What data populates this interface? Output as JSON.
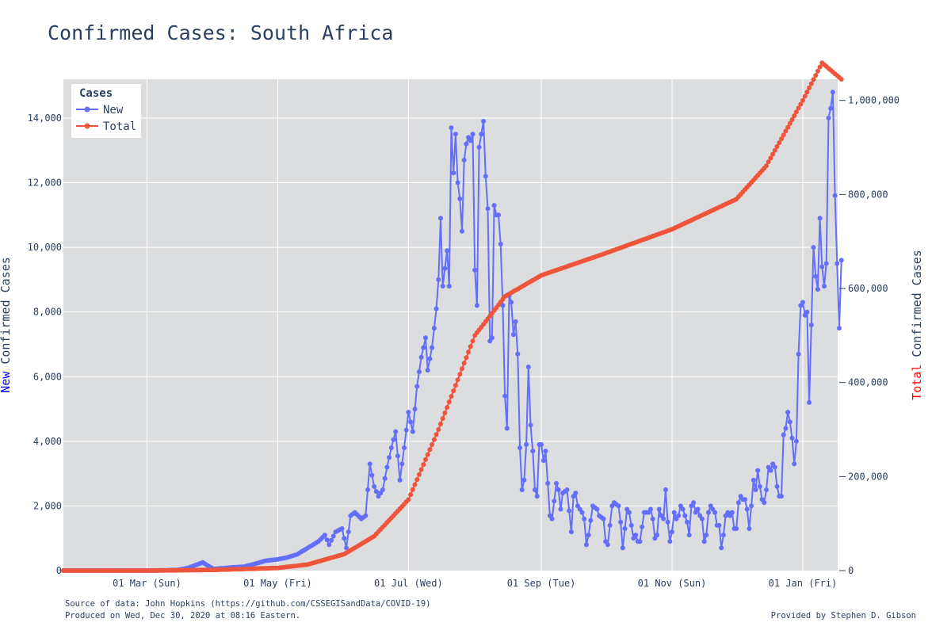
{
  "title": "Confirmed Cases: South Africa",
  "footer": {
    "source": "Source of data: John Hopkins (https://github.com/CSSEGISandData/COVID-19)",
    "produced": "Produced on Wed, Dec 30, 2020 at 08:16 Eastern.",
    "credit": "Provided by Stephen D. Gibson"
  },
  "colors": {
    "new": "#636efa",
    "total": "#ef553b",
    "plot_bg": "#dcdddf",
    "text": "#2a3f5f",
    "grid": "#ffffff"
  },
  "chart_data": {
    "type": "line",
    "title": "Confirmed Cases: South Africa",
    "legend": {
      "title": "Cases",
      "placement": "top-left"
    },
    "x_tick_labels": [
      "01 Mar (Sun)",
      "01 May (Fri)",
      "01 Jul (Wed)",
      "01 Sep (Tue)",
      "01 Nov (Sun)",
      "01 Jan (Fri)"
    ],
    "x_tick_dates": [
      "2020-03-01",
      "2020-05-01",
      "2020-07-01",
      "2020-09-01",
      "2020-11-01",
      "2021-01-01"
    ],
    "xlim": [
      "2020-01-22",
      "2021-01-01"
    ],
    "y_left": {
      "label_prefix": "New",
      "label_rest": " Confirmed Cases",
      "ylim": [
        0,
        15200
      ],
      "ticks": [
        0,
        2000,
        4000,
        6000,
        8000,
        10000,
        12000,
        14000
      ],
      "tick_labels": [
        "0",
        "2,000",
        "4,000",
        "6,000",
        "8,000",
        "10,000",
        "12,000",
        "14,000"
      ]
    },
    "y_right": {
      "label_prefix": "Total",
      "label_rest": " Confirmed Cases",
      "ylim": [
        0,
        1045000
      ],
      "ticks": [
        0,
        200000,
        400000,
        600000,
        800000,
        1000000
      ],
      "tick_labels": [
        "0",
        "200,000",
        "400,000",
        "600,000",
        "800,000",
        "1,000,000"
      ]
    },
    "grid": true,
    "series": [
      {
        "name": "New",
        "axis": "left",
        "points": [
          [
            "2020-01-22",
            0
          ],
          [
            "2020-03-05",
            0
          ],
          [
            "2020-03-15",
            20
          ],
          [
            "2020-03-20",
            80
          ],
          [
            "2020-03-25",
            200
          ],
          [
            "2020-03-27",
            250
          ],
          [
            "2020-04-01",
            50
          ],
          [
            "2020-04-10",
            100
          ],
          [
            "2020-04-15",
            120
          ],
          [
            "2020-04-20",
            200
          ],
          [
            "2020-04-25",
            300
          ],
          [
            "2020-05-01",
            350
          ],
          [
            "2020-05-05",
            400
          ],
          [
            "2020-05-10",
            500
          ],
          [
            "2020-05-15",
            700
          ],
          [
            "2020-05-20",
            900
          ],
          [
            "2020-05-23",
            1100
          ],
          [
            "2020-05-25",
            800
          ],
          [
            "2020-05-28",
            1200
          ],
          [
            "2020-05-31",
            1300
          ],
          [
            "2020-06-02",
            700
          ],
          [
            "2020-06-04",
            1700
          ],
          [
            "2020-06-06",
            1800
          ],
          [
            "2020-06-09",
            1600
          ],
          [
            "2020-06-11",
            1700
          ],
          [
            "2020-06-13",
            3300
          ],
          [
            "2020-06-15",
            2600
          ],
          [
            "2020-06-17",
            2300
          ],
          [
            "2020-06-19",
            2500
          ],
          [
            "2020-06-21",
            3200
          ],
          [
            "2020-06-23",
            3800
          ],
          [
            "2020-06-25",
            4300
          ],
          [
            "2020-06-27",
            2800
          ],
          [
            "2020-06-29",
            3800
          ],
          [
            "2020-07-01",
            4900
          ],
          [
            "2020-07-03",
            4300
          ],
          [
            "2020-07-05",
            5700
          ],
          [
            "2020-07-07",
            6600
          ],
          [
            "2020-07-09",
            7200
          ],
          [
            "2020-07-10",
            6200
          ],
          [
            "2020-07-12",
            6900
          ],
          [
            "2020-07-14",
            8100
          ],
          [
            "2020-07-15",
            9000
          ],
          [
            "2020-07-16",
            10900
          ],
          [
            "2020-07-17",
            8800
          ],
          [
            "2020-07-19",
            9900
          ],
          [
            "2020-07-20",
            8800
          ],
          [
            "2020-07-21",
            13700
          ],
          [
            "2020-07-22",
            12300
          ],
          [
            "2020-07-23",
            13500
          ],
          [
            "2020-07-24",
            12000
          ],
          [
            "2020-07-25",
            11500
          ],
          [
            "2020-07-26",
            10500
          ],
          [
            "2020-07-27",
            12700
          ],
          [
            "2020-07-28",
            13200
          ],
          [
            "2020-07-29",
            13400
          ],
          [
            "2020-07-30",
            13300
          ],
          [
            "2020-07-31",
            13500
          ],
          [
            "2020-08-01",
            9300
          ],
          [
            "2020-08-02",
            8200
          ],
          [
            "2020-08-03",
            13100
          ],
          [
            "2020-08-05",
            13900
          ],
          [
            "2020-08-06",
            12200
          ],
          [
            "2020-08-07",
            11200
          ],
          [
            "2020-08-08",
            7100
          ],
          [
            "2020-08-09",
            7200
          ],
          [
            "2020-08-10",
            11300
          ],
          [
            "2020-08-11",
            11000
          ],
          [
            "2020-08-12",
            11000
          ],
          [
            "2020-08-13",
            10100
          ],
          [
            "2020-08-14",
            8200
          ],
          [
            "2020-08-15",
            5400
          ],
          [
            "2020-08-16",
            4400
          ],
          [
            "2020-08-17",
            8500
          ],
          [
            "2020-08-18",
            8300
          ],
          [
            "2020-08-19",
            7300
          ],
          [
            "2020-08-20",
            7700
          ],
          [
            "2020-08-21",
            6700
          ],
          [
            "2020-08-22",
            3800
          ],
          [
            "2020-08-23",
            2500
          ],
          [
            "2020-08-24",
            2800
          ],
          [
            "2020-08-25",
            3900
          ],
          [
            "2020-08-26",
            6300
          ],
          [
            "2020-08-27",
            4500
          ],
          [
            "2020-08-28",
            3700
          ],
          [
            "2020-08-29",
            2500
          ],
          [
            "2020-08-30",
            2300
          ],
          [
            "2020-08-31",
            3900
          ],
          [
            "2020-09-01",
            3900
          ],
          [
            "2020-09-02",
            3400
          ],
          [
            "2020-09-03",
            3700
          ],
          [
            "2020-09-04",
            2700
          ],
          [
            "2020-09-05",
            1700
          ],
          [
            "2020-09-06",
            1600
          ],
          [
            "2020-09-08",
            2700
          ],
          [
            "2020-09-09",
            2500
          ],
          [
            "2020-09-10",
            1900
          ],
          [
            "2020-09-11",
            2400
          ],
          [
            "2020-09-13",
            2500
          ],
          [
            "2020-09-15",
            1200
          ],
          [
            "2020-09-16",
            2300
          ],
          [
            "2020-09-17",
            2400
          ],
          [
            "2020-09-18",
            2000
          ],
          [
            "2020-09-20",
            1800
          ],
          [
            "2020-09-21",
            1600
          ],
          [
            "2020-09-22",
            800
          ],
          [
            "2020-09-23",
            1100
          ],
          [
            "2020-09-25",
            2000
          ],
          [
            "2020-09-27",
            1900
          ],
          [
            "2020-09-28",
            1700
          ],
          [
            "2020-09-30",
            1600
          ],
          [
            "2020-10-01",
            900
          ],
          [
            "2020-10-02",
            800
          ],
          [
            "2020-10-04",
            2000
          ],
          [
            "2020-10-05",
            2100
          ],
          [
            "2020-10-07",
            2000
          ],
          [
            "2020-10-08",
            1500
          ],
          [
            "2020-10-09",
            700
          ],
          [
            "2020-10-10",
            1300
          ],
          [
            "2020-10-11",
            1900
          ],
          [
            "2020-10-12",
            1800
          ],
          [
            "2020-10-13",
            1400
          ],
          [
            "2020-10-14",
            1000
          ],
          [
            "2020-10-15",
            1100
          ],
          [
            "2020-10-16",
            900
          ],
          [
            "2020-10-17",
            900
          ],
          [
            "2020-10-19",
            1800
          ],
          [
            "2020-10-21",
            1800
          ],
          [
            "2020-10-22",
            1900
          ],
          [
            "2020-10-23",
            1600
          ],
          [
            "2020-10-24",
            1000
          ],
          [
            "2020-10-25",
            1100
          ],
          [
            "2020-10-26",
            1900
          ],
          [
            "2020-10-27",
            1700
          ],
          [
            "2020-10-28",
            1600
          ],
          [
            "2020-10-29",
            2500
          ],
          [
            "2020-10-30",
            1500
          ],
          [
            "2020-10-31",
            900
          ],
          [
            "2020-11-01",
            1200
          ],
          [
            "2020-11-02",
            1800
          ],
          [
            "2020-11-03",
            1600
          ],
          [
            "2020-11-04",
            1700
          ],
          [
            "2020-11-05",
            2000
          ],
          [
            "2020-11-06",
            1900
          ],
          [
            "2020-11-07",
            1700
          ],
          [
            "2020-11-08",
            1500
          ],
          [
            "2020-11-09",
            1100
          ],
          [
            "2020-11-10",
            2000
          ],
          [
            "2020-11-11",
            2100
          ],
          [
            "2020-11-12",
            1800
          ],
          [
            "2020-11-13",
            1900
          ],
          [
            "2020-11-14",
            1700
          ],
          [
            "2020-11-15",
            1600
          ],
          [
            "2020-11-16",
            900
          ],
          [
            "2020-11-17",
            1100
          ],
          [
            "2020-11-18",
            1800
          ],
          [
            "2020-11-19",
            2000
          ],
          [
            "2020-11-20",
            1900
          ],
          [
            "2020-11-21",
            1800
          ],
          [
            "2020-11-22",
            1400
          ],
          [
            "2020-11-23",
            1400
          ],
          [
            "2020-11-24",
            700
          ],
          [
            "2020-11-25",
            1100
          ],
          [
            "2020-11-26",
            1700
          ],
          [
            "2020-11-27",
            1800
          ],
          [
            "2020-11-28",
            1700
          ],
          [
            "2020-11-29",
            1800
          ],
          [
            "2020-11-30",
            1300
          ],
          [
            "2020-12-01",
            1300
          ],
          [
            "2020-12-02",
            2100
          ],
          [
            "2020-12-03",
            2300
          ],
          [
            "2020-12-04",
            2200
          ],
          [
            "2020-12-05",
            2200
          ],
          [
            "2020-12-06",
            1900
          ],
          [
            "2020-12-07",
            1300
          ],
          [
            "2020-12-08",
            2000
          ],
          [
            "2020-12-09",
            2800
          ],
          [
            "2020-12-10",
            2500
          ],
          [
            "2020-12-11",
            3100
          ],
          [
            "2020-12-12",
            2600
          ],
          [
            "2020-12-13",
            2200
          ],
          [
            "2020-12-14",
            2100
          ],
          [
            "2020-12-15",
            2500
          ],
          [
            "2020-12-16",
            3200
          ],
          [
            "2020-12-17",
            3100
          ],
          [
            "2020-12-18",
            3300
          ],
          [
            "2020-12-19",
            3200
          ],
          [
            "2020-12-20",
            2600
          ],
          [
            "2020-12-21",
            2300
          ],
          [
            "2020-12-22",
            2300
          ],
          [
            "2020-12-23",
            4200
          ],
          [
            "2020-12-24",
            4400
          ],
          [
            "2020-12-25",
            4900
          ],
          [
            "2020-12-26",
            4600
          ],
          [
            "2020-12-27",
            4100
          ],
          [
            "2020-12-28",
            3300
          ],
          [
            "2020-12-29",
            4000
          ],
          [
            "2020-12-30",
            6700
          ],
          [
            "2020-12-31",
            8200
          ],
          [
            "2021-01-01",
            8300
          ],
          [
            "2021-01-02",
            7900
          ],
          [
            "2021-01-03",
            8000
          ],
          [
            "2021-01-04",
            5200
          ],
          [
            "2021-01-05",
            7600
          ],
          [
            "2021-01-06",
            10000
          ],
          [
            "2021-01-07",
            9100
          ],
          [
            "2021-01-08",
            8700
          ],
          [
            "2021-01-09",
            10900
          ],
          [
            "2021-01-10",
            9400
          ],
          [
            "2021-01-11",
            8800
          ],
          [
            "2021-01-12",
            9500
          ],
          [
            "2021-01-13",
            14000
          ],
          [
            "2021-01-14",
            14300
          ],
          [
            "2021-01-15",
            14800
          ],
          [
            "2021-01-16",
            11600
          ],
          [
            "2021-01-17",
            9500
          ],
          [
            "2021-01-18",
            7500
          ],
          [
            "2021-01-19",
            9600
          ]
        ]
      },
      {
        "name": "Total",
        "axis": "right",
        "points": [
          [
            "2020-01-22",
            0
          ],
          [
            "2020-03-01",
            0
          ],
          [
            "2020-04-01",
            1400
          ],
          [
            "2020-05-01",
            5600
          ],
          [
            "2020-05-15",
            13000
          ],
          [
            "2020-06-01",
            35000
          ],
          [
            "2020-06-15",
            73000
          ],
          [
            "2020-07-01",
            151000
          ],
          [
            "2020-07-15",
            300000
          ],
          [
            "2020-08-01",
            500000
          ],
          [
            "2020-08-15",
            583000
          ],
          [
            "2020-09-01",
            628000
          ],
          [
            "2020-10-01",
            675000
          ],
          [
            "2020-11-01",
            726000
          ],
          [
            "2020-12-01",
            790000
          ],
          [
            "2020-12-15",
            861000
          ],
          [
            "2021-01-01",
            1000000
          ],
          [
            "2021-01-10",
            1080000
          ],
          [
            "2021-01-19",
            1045000
          ]
        ]
      }
    ]
  }
}
